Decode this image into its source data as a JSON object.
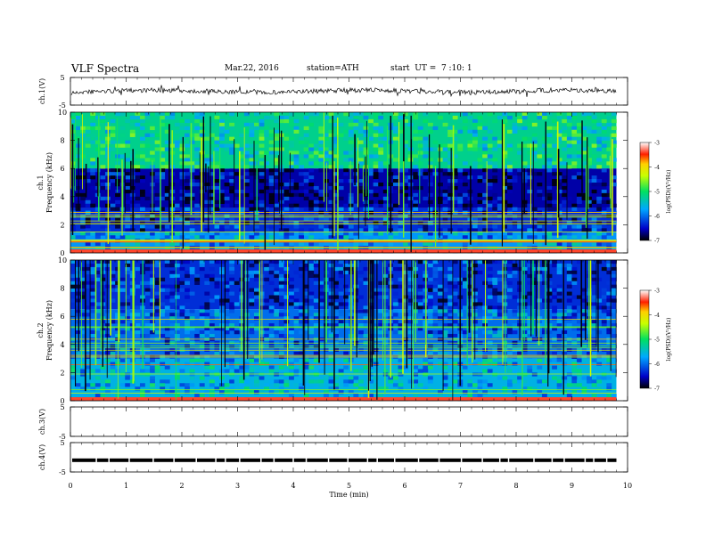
{
  "header": {
    "title": "VLF  Spectra",
    "date": "Mar.22, 2016",
    "station": "station=ATH",
    "start": "start  UT =  7 :10: 1"
  },
  "chart_data": [
    {
      "type": "line",
      "panel": "ch1-waveform",
      "ylabel": "ch.1(V)",
      "ylim": [
        -5,
        5
      ],
      "yticks": [
        "5",
        "-5"
      ],
      "xlim": [
        0,
        10
      ],
      "trace": "noise waveform centred near 0 V, amplitude about ±0.5 V",
      "trace_end_min": 9.8
    },
    {
      "type": "heatmap",
      "panel": "ch1-spectrogram",
      "ylabel_top": "ch.1",
      "ylabel": "Frequency  (kHz)",
      "ylim": [
        0,
        10
      ],
      "yticks": [
        "0",
        "2",
        "4",
        "6",
        "8",
        "10"
      ],
      "xlim": [
        0,
        10
      ],
      "data_end_min": 9.8,
      "colorbar": {
        "label": "log(PSD)(V²/Hz)",
        "ticks": [
          "-3",
          "-4",
          "-5",
          "-6",
          "-7"
        ],
        "range": [
          -7,
          -3
        ]
      },
      "bands": [
        {
          "from_khz": 6.0,
          "to_khz": 10.0,
          "log_psd": -5.2
        },
        {
          "from_khz": 3.2,
          "to_khz": 6.0,
          "log_psd": -6.6
        },
        {
          "from_khz": 1.5,
          "to_khz": 3.2,
          "log_psd": -6.3
        },
        {
          "from_khz": 0.0,
          "to_khz": 1.5,
          "log_psd": -5.8
        }
      ]
    },
    {
      "type": "heatmap",
      "panel": "ch2-spectrogram",
      "ylabel_top": "ch.2",
      "ylabel": "Frequency  (kHz)",
      "ylim": [
        0,
        10
      ],
      "yticks": [
        "0",
        "2",
        "4",
        "6",
        "8",
        "10"
      ],
      "xlim": [
        0,
        10
      ],
      "data_end_min": 9.8,
      "colorbar": {
        "label": "log(PSD)(V²/Hz)",
        "ticks": [
          "-3",
          "-4",
          "-5",
          "-6",
          "-7"
        ],
        "range": [
          -7,
          -3
        ]
      },
      "bands": [
        {
          "from_khz": 6.5,
          "to_khz": 10.0,
          "log_psd": -6.3
        },
        {
          "from_khz": 3.0,
          "to_khz": 6.5,
          "log_psd": -6.0
        },
        {
          "from_khz": 0.0,
          "to_khz": 3.0,
          "log_psd": -5.6
        }
      ]
    },
    {
      "type": "line",
      "panel": "ch3-waveform",
      "ylabel": "ch.3(V)",
      "ylim": [
        -5,
        5
      ],
      "yticks": [
        "5",
        "-5"
      ],
      "xlim": [
        0,
        10
      ],
      "trace": "none"
    },
    {
      "type": "line",
      "panel": "ch4-waveform",
      "ylabel": "ch.4(V)",
      "ylim": [
        -5,
        5
      ],
      "yticks": [
        "5",
        "-5"
      ],
      "xlim": [
        0,
        10
      ],
      "trace": "flat signal near -1 V with periodic small gaps",
      "level": -1,
      "trace_end_min": 9.8
    }
  ],
  "xaxis": {
    "label": "Time  (min)",
    "ticks": [
      "0",
      "1",
      "2",
      "3",
      "4",
      "5",
      "6",
      "7",
      "8",
      "9",
      "10"
    ]
  }
}
